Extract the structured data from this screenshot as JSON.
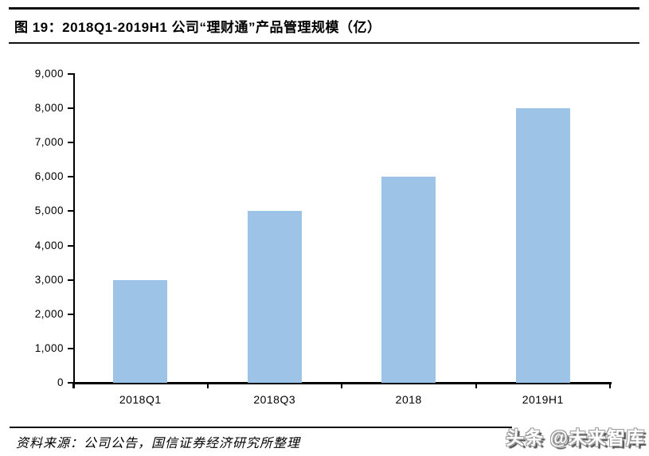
{
  "figure": {
    "title": "图 19：2018Q1-2019H1 公司“理财通”产品管理规模（亿）",
    "source": "资料来源：公司公告，国信证券经济研究所整理",
    "watermark": "头条 @未来智库"
  },
  "chart_data": {
    "type": "bar",
    "categories": [
      "2018Q1",
      "2018Q3",
      "2018",
      "2019H1"
    ],
    "values": [
      3000,
      5000,
      6000,
      8000
    ],
    "title": "2018Q1-2019H1 公司“理财通”产品管理规模（亿）",
    "xlabel": "",
    "ylabel": "",
    "ylim": [
      0,
      9000
    ],
    "ytick_step": 1000,
    "ytick_labels": [
      "0",
      "1,000",
      "2,000",
      "3,000",
      "4,000",
      "5,000",
      "6,000",
      "7,000",
      "8,000",
      "9,000"
    ],
    "bar_color": "#9DC3E6",
    "axis_color": "#000000",
    "grid": false,
    "legend": "none"
  }
}
